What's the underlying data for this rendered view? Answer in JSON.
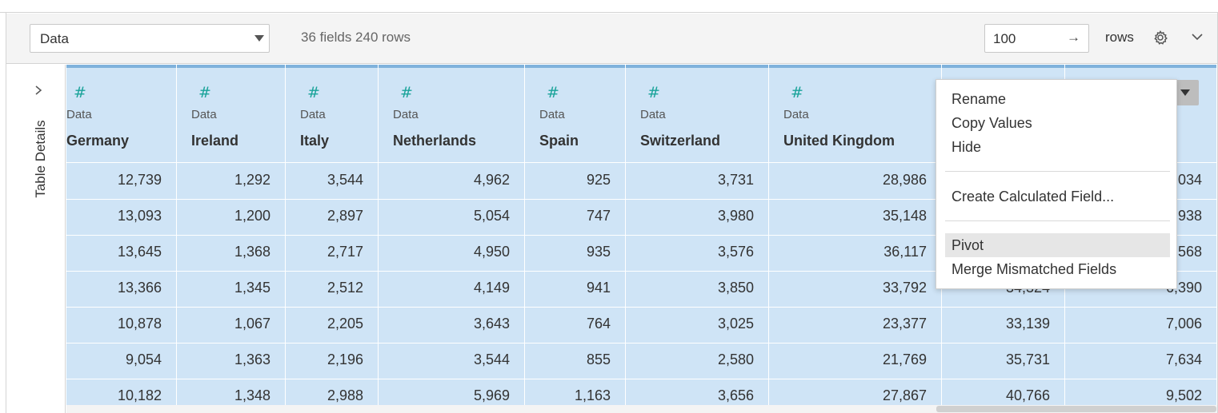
{
  "toolbar": {
    "source_select": "Data",
    "summary": "36 fields 240 rows",
    "rows_value": "100",
    "rows_arrow": "→",
    "rows_label": "rows"
  },
  "side_panel": {
    "expand_glyph": ">",
    "label": "Table Details"
  },
  "grid": {
    "columns": [
      {
        "type": "Data",
        "name": "Germany",
        "icon": "number-icon"
      },
      {
        "type": "Data",
        "name": "Ireland",
        "icon": "number-icon"
      },
      {
        "type": "Data",
        "name": "Italy",
        "icon": "number-icon"
      },
      {
        "type": "Data",
        "name": "Netherlands",
        "icon": "number-icon"
      },
      {
        "type": "Data",
        "name": "Spain",
        "icon": "number-icon"
      },
      {
        "type": "Data",
        "name": "Switzerland",
        "icon": "number-icon"
      },
      {
        "type": "Data",
        "name": "United Kingdom",
        "icon": "number-icon"
      },
      {
        "type": "",
        "name": "",
        "icon": ""
      },
      {
        "type": "",
        "name": "",
        "icon": ""
      }
    ],
    "rows": [
      [
        "12,739",
        "1,292",
        "3,544",
        "4,962",
        "925",
        "3,731",
        "28,986",
        "",
        "034"
      ],
      [
        "13,093",
        "1,200",
        "2,897",
        "5,054",
        "747",
        "3,980",
        "35,148",
        "",
        "938"
      ],
      [
        "13,645",
        "1,368",
        "2,717",
        "4,950",
        "935",
        "3,576",
        "36,117",
        "",
        "568"
      ],
      [
        "13,366",
        "1,345",
        "2,512",
        "4,149",
        "941",
        "3,850",
        "33,792",
        "34,324",
        "6,390"
      ],
      [
        "10,878",
        "1,067",
        "2,205",
        "3,643",
        "764",
        "3,025",
        "23,377",
        "33,139",
        "7,006"
      ],
      [
        "9,054",
        "1,363",
        "2,196",
        "3,544",
        "855",
        "2,580",
        "21,769",
        "35,731",
        "7,634"
      ],
      [
        "10,182",
        "1,348",
        "2,988",
        "5,969",
        "1,163",
        "3,656",
        "27,867",
        "40,766",
        "9,502"
      ]
    ]
  },
  "context_menu": {
    "items": [
      "Rename",
      "Copy Values",
      "Hide",
      "Create Calculated Field...",
      "Pivot",
      "Merge Mismatched Fields"
    ],
    "highlighted": "Pivot"
  },
  "colors": {
    "grid_bg": "#cfe4f6",
    "type_icon": "#1aa39a",
    "menu_highlight": "#e6e6e6"
  }
}
